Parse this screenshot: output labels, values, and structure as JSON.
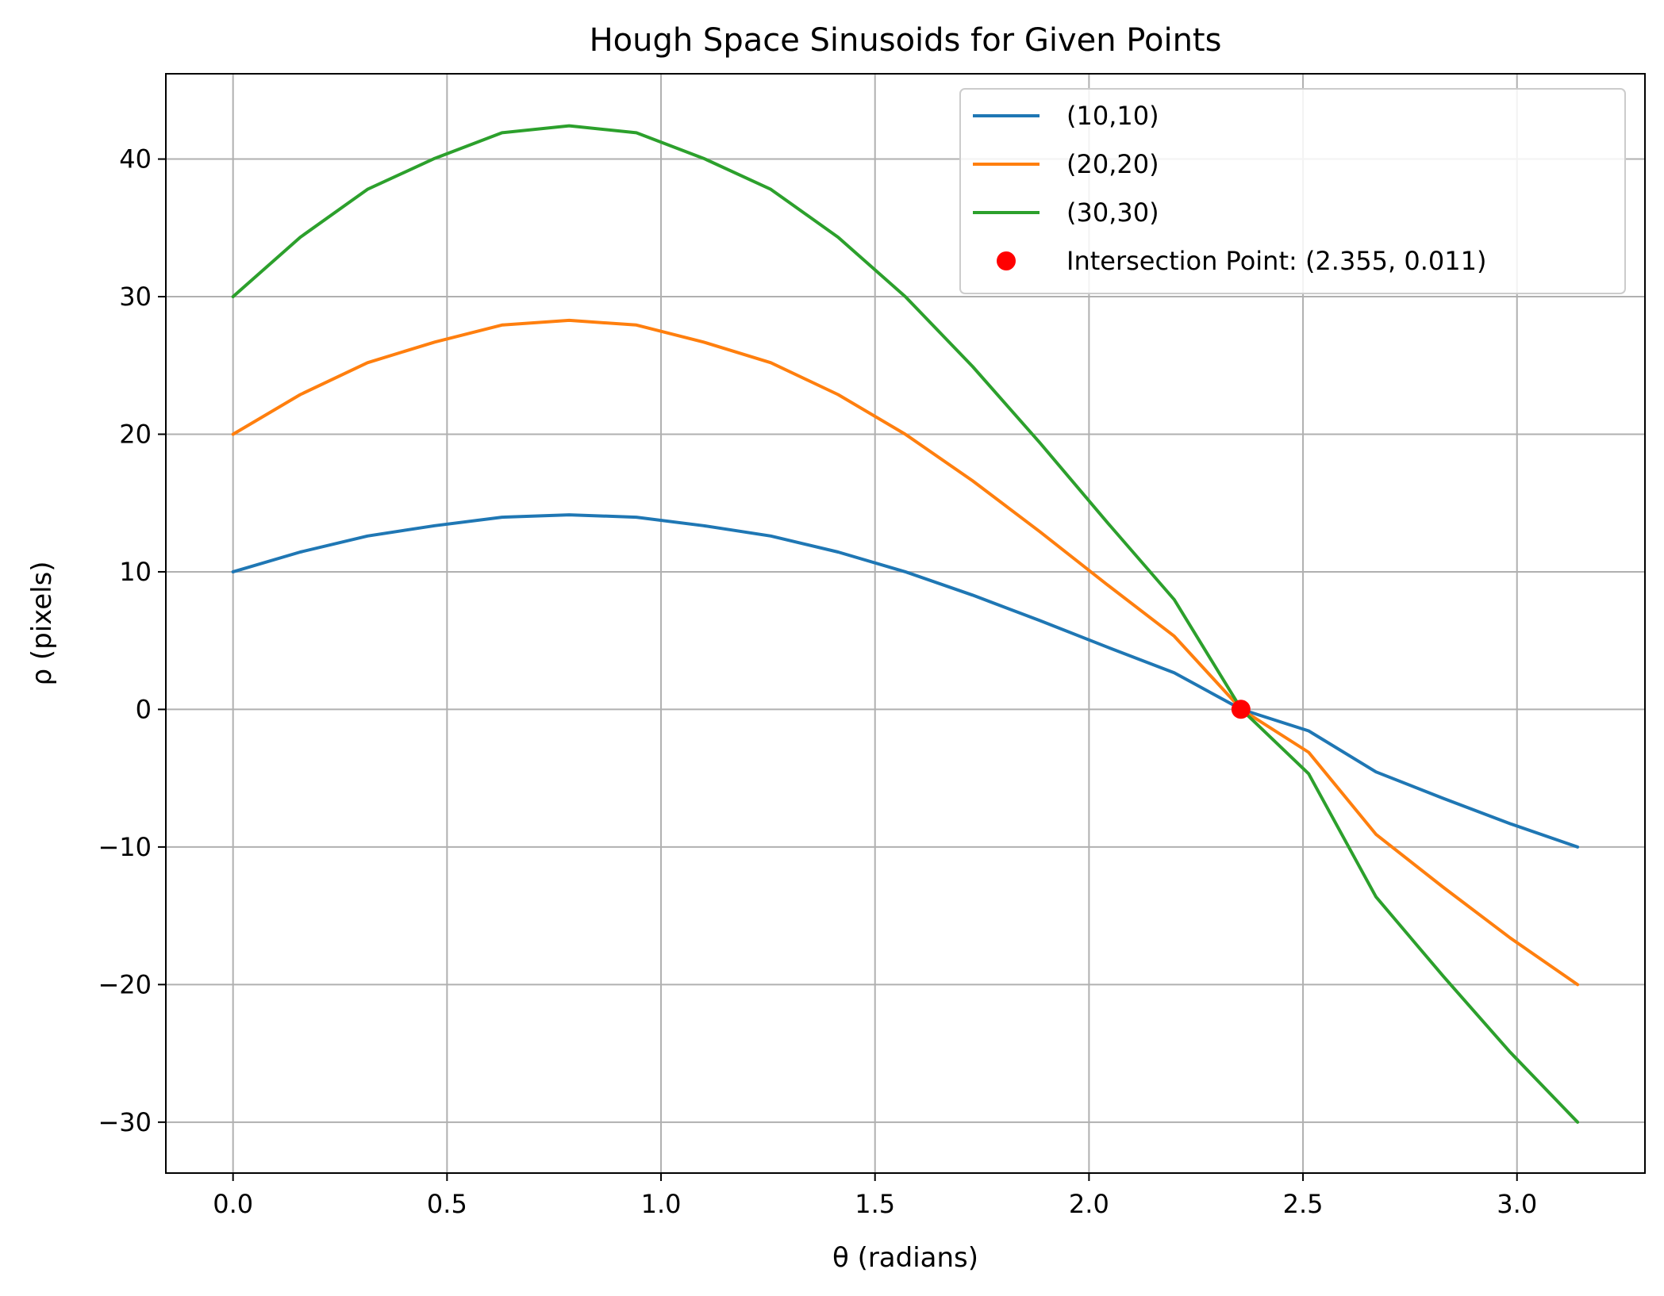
{
  "chart_data": {
    "type": "line",
    "title": "Hough Space Sinusoids for Given Points",
    "xlabel": "θ (radians)",
    "ylabel": "ρ (pixels)",
    "xlim": [
      -0.157,
      3.299
    ],
    "ylim": [
      -33.7,
      46.2
    ],
    "grid": true,
    "legend_position": "upper right",
    "x_ticks": [
      {
        "value": 0.0,
        "label": "0.0"
      },
      {
        "value": 0.5,
        "label": "0.5"
      },
      {
        "value": 1.0,
        "label": "1.0"
      },
      {
        "value": 1.5,
        "label": "1.5"
      },
      {
        "value": 2.0,
        "label": "2.0"
      },
      {
        "value": 2.5,
        "label": "2.5"
      },
      {
        "value": 3.0,
        "label": "3.0"
      }
    ],
    "y_ticks": [
      {
        "value": -30,
        "label": "−30"
      },
      {
        "value": -20,
        "label": "−20"
      },
      {
        "value": -10,
        "label": "−10"
      },
      {
        "value": 0,
        "label": "0"
      },
      {
        "value": 10,
        "label": "10"
      },
      {
        "value": 20,
        "label": "20"
      },
      {
        "value": 30,
        "label": "30"
      },
      {
        "value": 40,
        "label": "40"
      }
    ],
    "x": [
      0.0,
      0.1571,
      0.3142,
      0.4712,
      0.6283,
      0.7854,
      0.9425,
      1.0996,
      1.2566,
      1.4137,
      1.5708,
      1.7279,
      1.885,
      2.042,
      2.1991,
      2.3562,
      2.5133,
      2.6704,
      2.8274,
      2.9845,
      3.1416
    ],
    "series": [
      {
        "name": "(10,10)",
        "color": "#1f77b4",
        "values": [
          10.0,
          11.44,
          12.6,
          13.35,
          13.97,
          14.14,
          13.97,
          13.35,
          12.6,
          11.44,
          10.0,
          8.31,
          6.46,
          4.54,
          2.66,
          0.0,
          -1.56,
          -4.54,
          -6.46,
          -8.31,
          -10.0
        ]
      },
      {
        "name": "(20,20)",
        "color": "#ff7f0e",
        "values": [
          20.0,
          22.88,
          25.2,
          26.7,
          27.94,
          28.28,
          27.94,
          26.7,
          25.2,
          22.88,
          20.0,
          16.62,
          12.92,
          9.08,
          5.32,
          0.0,
          -3.12,
          -9.08,
          -12.92,
          -16.62,
          -20.0
        ]
      },
      {
        "name": "(30,30)",
        "color": "#2ca02c",
        "values": [
          30.0,
          34.32,
          37.8,
          40.05,
          41.91,
          42.42,
          41.91,
          40.05,
          37.8,
          34.32,
          30.0,
          24.93,
          19.38,
          13.62,
          7.98,
          0.0,
          -4.68,
          -13.62,
          -19.38,
          -24.93,
          -30.0
        ]
      }
    ],
    "points": [
      {
        "name": "Intersection Point: (2.355, 0.011)",
        "color": "#ff0000",
        "x": 2.355,
        "y": 0.011
      }
    ]
  }
}
